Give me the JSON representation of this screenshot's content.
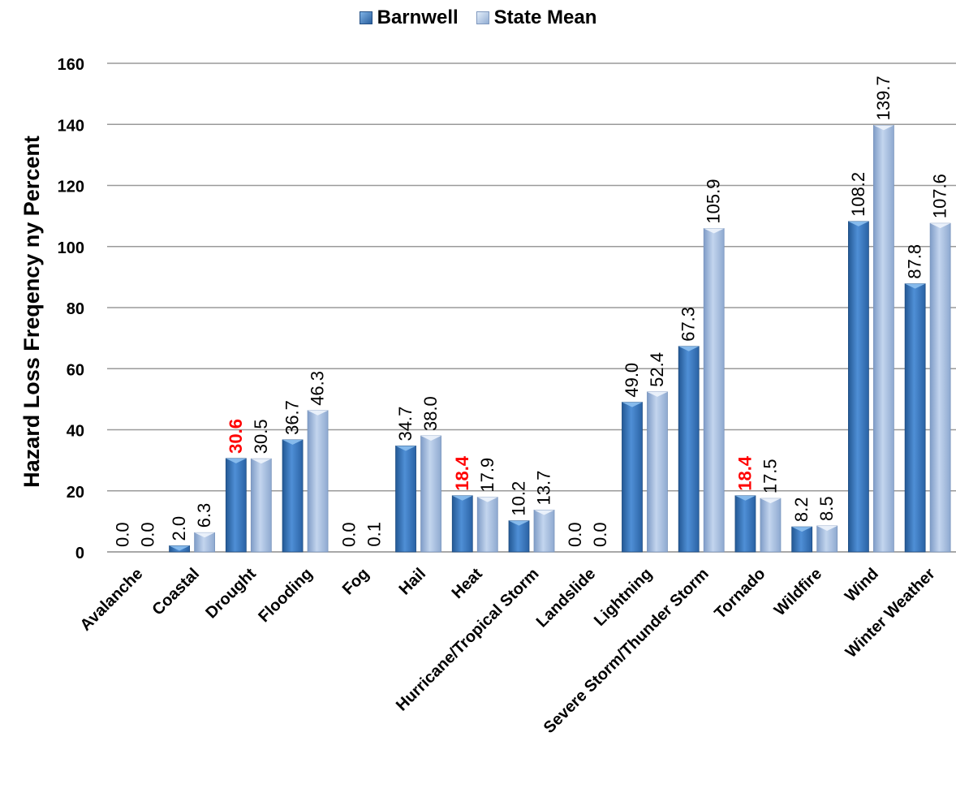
{
  "chart_data": {
    "type": "bar",
    "categories": [
      "Avalanche",
      "Coastal",
      "Drought",
      "Flooding",
      "Fog",
      "Hail",
      "Heat",
      "Hurricane/Tropical Storm",
      "Landslide",
      "Lightning",
      "Severe Storm/Thunder Storm",
      "Tornado",
      "Wildfire",
      "Wind",
      "Winter Weather"
    ],
    "series": [
      {
        "name": "Barnwell",
        "values": [
          0.0,
          2.0,
          30.6,
          36.7,
          0.0,
          34.7,
          18.4,
          10.2,
          0.0,
          49.0,
          67.3,
          18.4,
          8.2,
          108.2,
          87.8
        ],
        "labels": [
          "0.0",
          "2.0",
          "30.6",
          "36.7",
          "0.0",
          "34.7",
          "18.4",
          "10.2",
          "0.0",
          "49.0",
          "67.3",
          "18.4",
          "8.2",
          "108.2",
          "87.8"
        ],
        "highlighted": [
          false,
          false,
          true,
          false,
          false,
          false,
          true,
          false,
          false,
          false,
          false,
          true,
          false,
          false,
          false
        ],
        "color": "#3d7cc4"
      },
      {
        "name": "State Mean",
        "values": [
          0.0,
          6.3,
          30.5,
          46.3,
          0.1,
          38.0,
          17.9,
          13.7,
          0.0,
          52.4,
          105.9,
          17.5,
          8.5,
          139.7,
          107.6
        ],
        "labels": [
          "0.0",
          "6.3",
          "30.5",
          "46.3",
          "0.1",
          "38.0",
          "17.9",
          "13.7",
          "0.0",
          "52.4",
          "105.9",
          "17.5",
          "8.5",
          "139.7",
          "107.6"
        ],
        "color": "#a9c0e0"
      }
    ],
    "ylabel": "Hazard Loss Freqency ny Percent",
    "xlabel": "",
    "ylim": [
      0,
      160
    ],
    "yticks": [
      "0",
      "20",
      "40",
      "60",
      "80",
      "100",
      "120",
      "140",
      "160"
    ],
    "grid": true,
    "legend_position": "top",
    "highlight_color": "#ff0000"
  }
}
